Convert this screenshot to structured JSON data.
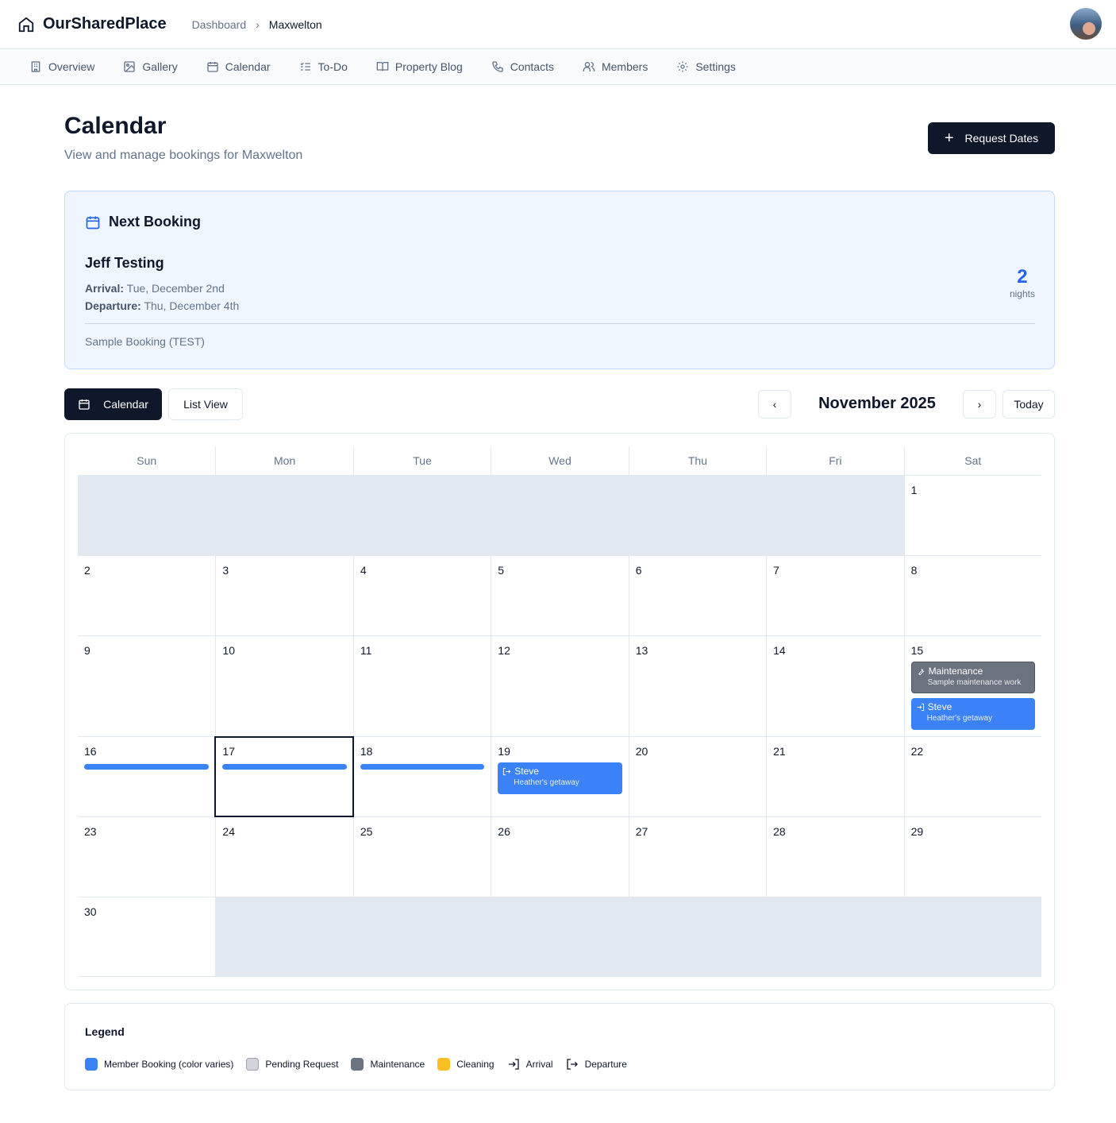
{
  "app": {
    "name": "OurSharedPlace",
    "breadcrumb": [
      "Dashboard",
      "Maxwelton"
    ]
  },
  "nav": [
    {
      "label": "Overview",
      "icon": "building-icon"
    },
    {
      "label": "Gallery",
      "icon": "image-icon"
    },
    {
      "label": "Calendar",
      "icon": "calendar-icon"
    },
    {
      "label": "To-Do",
      "icon": "list-check-icon"
    },
    {
      "label": "Property Blog",
      "icon": "book-icon"
    },
    {
      "label": "Contacts",
      "icon": "phone-icon"
    },
    {
      "label": "Members",
      "icon": "users-icon"
    },
    {
      "label": "Settings",
      "icon": "gear-icon"
    }
  ],
  "page": {
    "title": "Calendar",
    "subtitle": "View and manage bookings for Maxwelton",
    "request_label": "Request Dates"
  },
  "next_booking": {
    "heading": "Next Booking",
    "guest": "Jeff Testing",
    "arrival_label": "Arrival:",
    "arrival": "Tue, December 2nd",
    "departure_label": "Departure:",
    "departure": "Thu, December 4th",
    "nights": "2",
    "nights_label": "nights",
    "note": "Sample Booking (TEST)"
  },
  "toolbar": {
    "calendar_label": "Calendar",
    "list_label": "List View",
    "month": "November 2025",
    "today_label": "Today"
  },
  "weekdays": [
    "Sun",
    "Mon",
    "Tue",
    "Wed",
    "Thu",
    "Fri",
    "Sat"
  ],
  "weeks": [
    {
      "h": 101,
      "days": [
        null,
        null,
        null,
        null,
        null,
        null,
        {
          "d": "1"
        }
      ]
    },
    {
      "h": 101,
      "days": [
        {
          "d": "2"
        },
        {
          "d": "3"
        },
        {
          "d": "4"
        },
        {
          "d": "5"
        },
        {
          "d": "6"
        },
        {
          "d": "7"
        },
        {
          "d": "8"
        }
      ]
    },
    {
      "h": 127,
      "days": [
        {
          "d": "9"
        },
        {
          "d": "10"
        },
        {
          "d": "11"
        },
        {
          "d": "12"
        },
        {
          "d": "13"
        },
        {
          "d": "14"
        },
        {
          "d": "15",
          "events": [
            {
              "type": "maintenance",
              "title": "Maintenance",
              "sub": "Sample maintenance work",
              "icon": "wrench-icon"
            },
            {
              "type": "booking",
              "title": "Steve",
              "sub": "Heather's getaway",
              "icon": "arrival-icon"
            }
          ]
        }
      ]
    },
    {
      "h": 101,
      "days": [
        {
          "d": "16",
          "bar": true
        },
        {
          "d": "17",
          "bar": true,
          "today": true
        },
        {
          "d": "18",
          "bar": true
        },
        {
          "d": "19",
          "events": [
            {
              "type": "booking",
              "title": "Steve",
              "sub": "Heather's getaway",
              "icon": "departure-icon"
            }
          ]
        },
        {
          "d": "20"
        },
        {
          "d": "21"
        },
        {
          "d": "22"
        }
      ]
    },
    {
      "h": 101,
      "days": [
        {
          "d": "23"
        },
        {
          "d": "24"
        },
        {
          "d": "25"
        },
        {
          "d": "26"
        },
        {
          "d": "27"
        },
        {
          "d": "28"
        },
        {
          "d": "29"
        }
      ]
    },
    {
      "h": 100,
      "days": [
        {
          "d": "30"
        },
        null,
        null,
        null,
        null,
        null,
        null
      ]
    }
  ],
  "legend": {
    "title": "Legend",
    "items": [
      {
        "label": "Member Booking (color varies)",
        "color": "#3b82f6"
      },
      {
        "label": "Pending Request",
        "color": "#d1d5db"
      },
      {
        "label": "Maintenance",
        "color": "#6b7280"
      },
      {
        "label": "Cleaning",
        "color": "#fbbf24"
      },
      {
        "label": "Arrival",
        "icon": "arrival-icon"
      },
      {
        "label": "Departure",
        "icon": "departure-icon"
      }
    ]
  }
}
